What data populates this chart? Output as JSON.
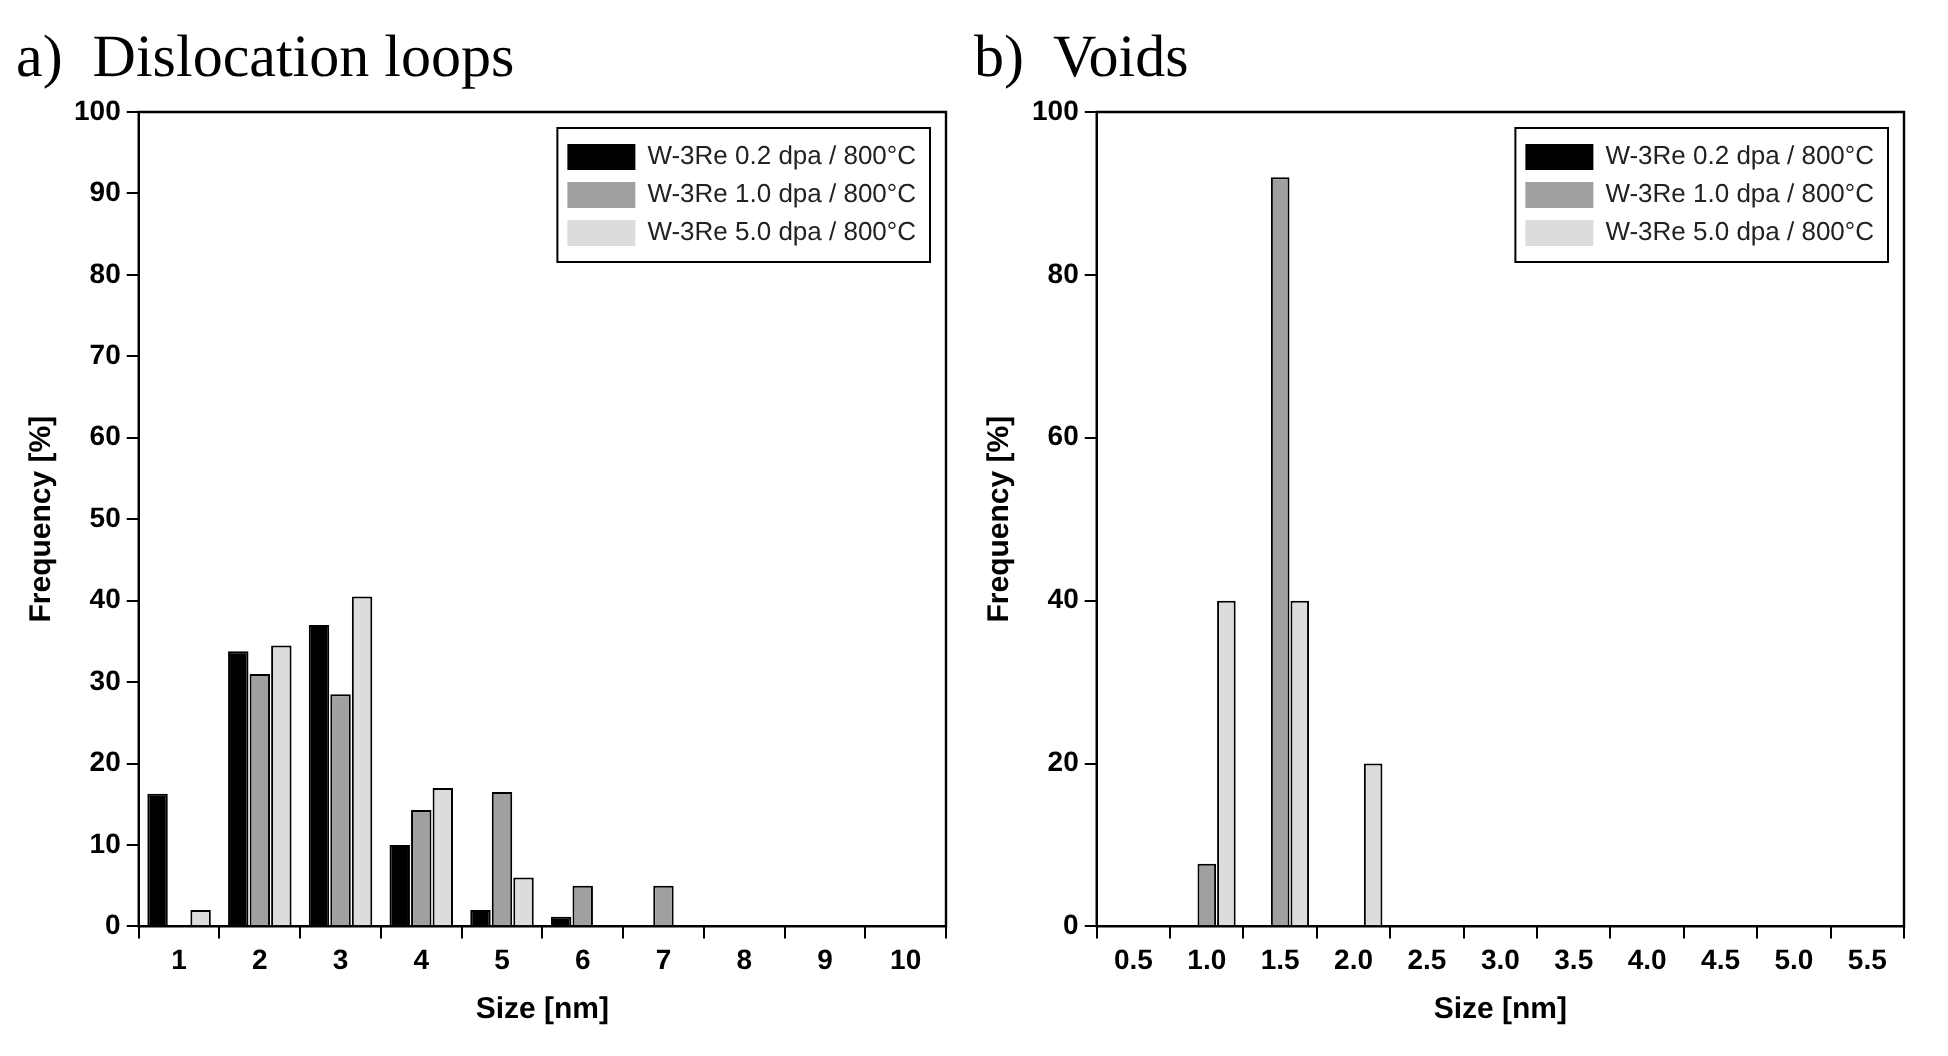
{
  "chart_data": [
    {
      "type": "bar",
      "title": "a)  Dislocation loops",
      "xlabel": "Size [nm]",
      "ylabel": "Frequency [%]",
      "categories": [
        "1",
        "2",
        "3",
        "4",
        "5",
        "6",
        "7",
        "8",
        "9",
        "10"
      ],
      "series": [
        {
          "name": "W-3Re 0.2 dpa / 800°C",
          "color": "#000000",
          "values": [
            16.3,
            33.8,
            37,
            10,
            2,
            1.2,
            0,
            0,
            0,
            0
          ]
        },
        {
          "name": "W-3Re 1.0 dpa / 800°C",
          "color": "#a0a0a0",
          "values": [
            0,
            31,
            28.5,
            14.3,
            16.5,
            5,
            5,
            0,
            0,
            0
          ]
        },
        {
          "name": "W-3Re 5.0 dpa / 800°C",
          "color": "#dcdcdc",
          "values": [
            2,
            34.5,
            40.5,
            17,
            6,
            0,
            0,
            0,
            0,
            0
          ]
        }
      ],
      "ylim": [
        0,
        100
      ],
      "yticks": [
        0,
        10,
        20,
        30,
        40,
        50,
        60,
        70,
        80,
        90,
        100
      ],
      "grid": false,
      "legend": "top right"
    },
    {
      "type": "bar",
      "title": "b)  Voids",
      "xlabel": "Size [nm]",
      "ylabel": "Frequency [%]",
      "categories": [
        "0.5",
        "1.0",
        "1.5",
        "2.0",
        "2.5",
        "3.0",
        "3.5",
        "4.0",
        "4.5",
        "5.0",
        "5.5"
      ],
      "series": [
        {
          "name": "W-3Re 0.2 dpa / 800°C",
          "color": "#000000",
          "values": [
            0,
            0,
            0,
            0,
            0,
            0,
            0,
            0,
            0,
            0,
            0
          ]
        },
        {
          "name": "W-3Re 1.0 dpa / 800°C",
          "color": "#a0a0a0",
          "values": [
            0,
            7.7,
            92,
            0,
            0,
            0,
            0,
            0,
            0,
            0,
            0
          ]
        },
        {
          "name": "W-3Re 5.0 dpa / 800°C",
          "color": "#dcdcdc",
          "values": [
            0,
            40,
            40,
            20,
            0,
            0,
            0,
            0,
            0,
            0,
            0
          ]
        }
      ],
      "ylim": [
        0,
        100
      ],
      "yticks": [
        0,
        20,
        40,
        60,
        80,
        100
      ],
      "grid": false,
      "legend": "top right"
    }
  ]
}
